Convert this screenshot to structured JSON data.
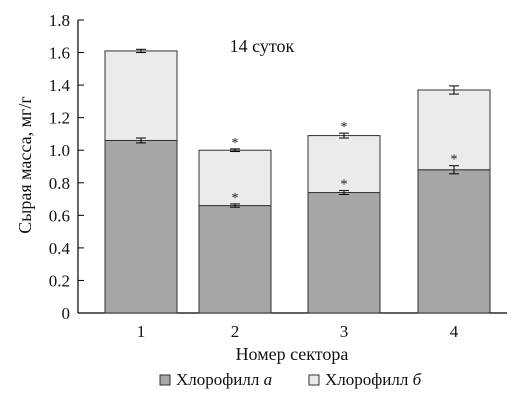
{
  "chart_data": {
    "type": "bar",
    "stacked": true,
    "annotation": "14 суток",
    "xlabel": "Номер сектора",
    "ylabel": "Сырая масса, мг/г",
    "categories": [
      "1",
      "2",
      "3",
      "4"
    ],
    "ylim": [
      0,
      1.8
    ],
    "yticks": [
      0,
      0.2,
      0.4,
      0.6,
      0.8,
      1.0,
      1.2,
      1.4,
      1.6,
      1.8
    ],
    "ytick_labels": [
      "0",
      "0.2",
      "0.4",
      "0.6",
      "0.8",
      "1.0",
      "1.2",
      "1.4",
      "1.6",
      "1.8"
    ],
    "series": [
      {
        "name": "Хлорофилл a",
        "name_base": "Хлорофилл ",
        "name_italic": "a",
        "color": "#a6a6a6",
        "values": [
          1.06,
          0.66,
          0.74,
          0.88
        ],
        "errors": [
          0.015,
          0.01,
          0.012,
          0.025
        ],
        "significance": [
          "",
          "*",
          "*",
          "*"
        ]
      },
      {
        "name": "Хлорофилл б",
        "name_base": "Хлорофилл ",
        "name_italic": "б",
        "color": "#ebebeb",
        "values": [
          0.55,
          0.34,
          0.35,
          0.49
        ],
        "errors": [
          0.01,
          0.008,
          0.015,
          0.025
        ],
        "significance": [
          "",
          "*",
          "*",
          ""
        ]
      }
    ],
    "grid": false,
    "legend_position": "bottom"
  }
}
